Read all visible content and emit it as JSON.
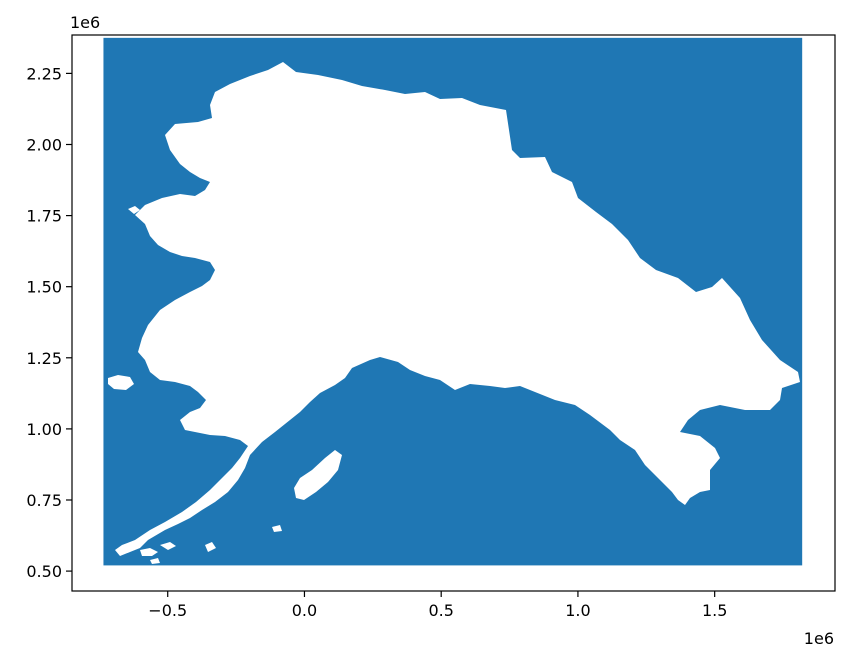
{
  "chart_data": {
    "type": "map",
    "title": "",
    "xlabel": "",
    "ylabel": "",
    "xlim": [
      -0.85,
      1.94
    ],
    "ylim": [
      0.43,
      2.385
    ],
    "x_offset_label": "1e6",
    "y_offset_label": "1e6",
    "x_ticks": [
      {
        "value": -0.5,
        "label": "−0.5"
      },
      {
        "value": 0.0,
        "label": "0.0"
      },
      {
        "value": 0.5,
        "label": "0.5"
      },
      {
        "value": 1.0,
        "label": "1.0"
      },
      {
        "value": 1.5,
        "label": "1.5"
      }
    ],
    "y_ticks": [
      {
        "value": 0.5,
        "label": "0.50"
      },
      {
        "value": 0.75,
        "label": "0.75"
      },
      {
        "value": 1.0,
        "label": "1.00"
      },
      {
        "value": 1.25,
        "label": "1.25"
      },
      {
        "value": 1.5,
        "label": "1.50"
      },
      {
        "value": 1.75,
        "label": "1.75"
      },
      {
        "value": 2.0,
        "label": "2.00"
      },
      {
        "value": 2.25,
        "label": "2.25"
      }
    ],
    "water_extent": {
      "xmin": -0.735,
      "xmax": 1.82,
      "ymin": 0.52,
      "ymax": 2.375
    },
    "grid": false,
    "colors": {
      "water": "#1f77b4",
      "land": "#ffffff",
      "axes": "#000000"
    }
  }
}
